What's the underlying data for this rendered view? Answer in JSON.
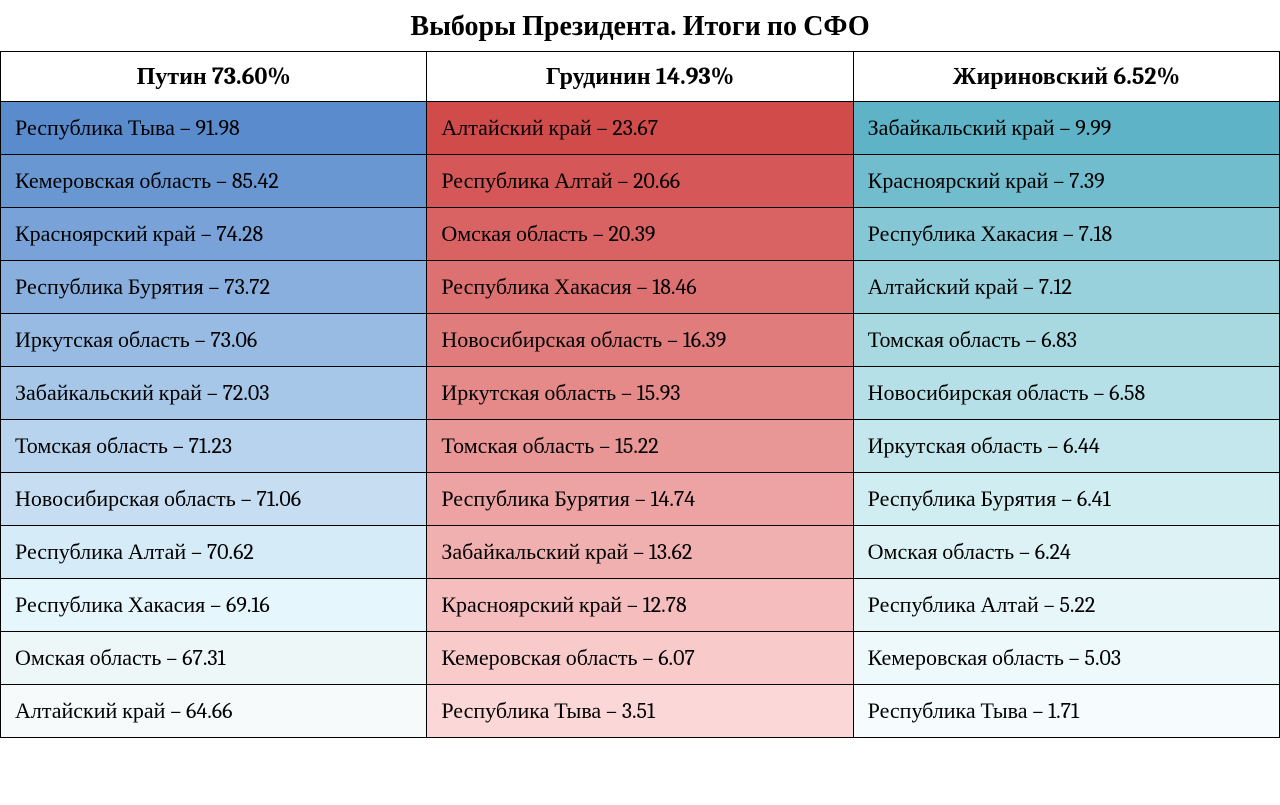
{
  "title": "Выборы Президента. Итоги по СФО",
  "type": "table",
  "columns": [
    {
      "header": "Путин  73.60%",
      "colors": [
        "#5a8bcd",
        "#6997d2",
        "#79a3d8",
        "#88afdd",
        "#98bbe3",
        "#a7c7e8",
        "#b7d3ed",
        "#c7def2",
        "#d6ebf8",
        "#e6f6fd",
        "#eef7f8",
        "#f6fafb"
      ],
      "rows": [
        "Республика Тыва – 91.98",
        "Кемеровская область – 85.42",
        "Красноярский край – 74.28",
        "Республика Бурятия – 73.72",
        "Иркутская область – 73.06",
        "Забайкальский край – 72.03",
        "Томская область – 71.23",
        "Новосибирская область – 71.06",
        "Республика Алтай – 70.62",
        "Республика Хакасия – 69.16",
        "Омская область – 67.31",
        "Алтайский край – 64.66"
      ]
    },
    {
      "header": "Грудинин  14.93%",
      "colors": [
        "#d14b4b",
        "#d55757",
        "#d96363",
        "#dd7070",
        "#e17c7c",
        "#e58989",
        "#e99696",
        "#eda3a3",
        "#f1b0b0",
        "#f5bdbd",
        "#f8caca",
        "#fbd7d7"
      ],
      "rows": [
        "Алтайский край – 23.67",
        "Республика Алтай – 20.66",
        "Омская область – 20.39",
        "Республика Хакасия – 18.46",
        "Новосибирская область – 16.39",
        "Иркутская область – 15.93",
        "Томская область – 15.22",
        "Республика Бурятия – 14.74",
        "Забайкальский край – 13.62",
        "Красноярский край – 12.78",
        "Кемеровская область – 6.07",
        "Республика Тыва – 3.51"
      ]
    },
    {
      "header": "Жириновский   6.52%",
      "colors": [
        "#5fb3c6",
        "#72bdcd",
        "#85c7d4",
        "#98d1db",
        "#a8d9e1",
        "#b6e0e7",
        "#c3e7ec",
        "#d0edf1",
        "#dcf2f5",
        "#e6f6f9",
        "#eef9fb",
        "#f6fcfd"
      ],
      "rows": [
        "Забайкальский край – 9.99",
        "Красноярский край –  7.39",
        "Республика Хакасия – 7.18",
        "Алтайский край – 7.12",
        "Томская область – 6.83",
        "Новосибирская область – 6.58",
        "Иркутская область – 6.44",
        "Республика Бурятия – 6.41",
        "Омская область – 6.24",
        "Республика Алтай – 5.22",
        "Кемеровская область – 5.03",
        "Республика Тыва – 1.71"
      ]
    }
  ]
}
